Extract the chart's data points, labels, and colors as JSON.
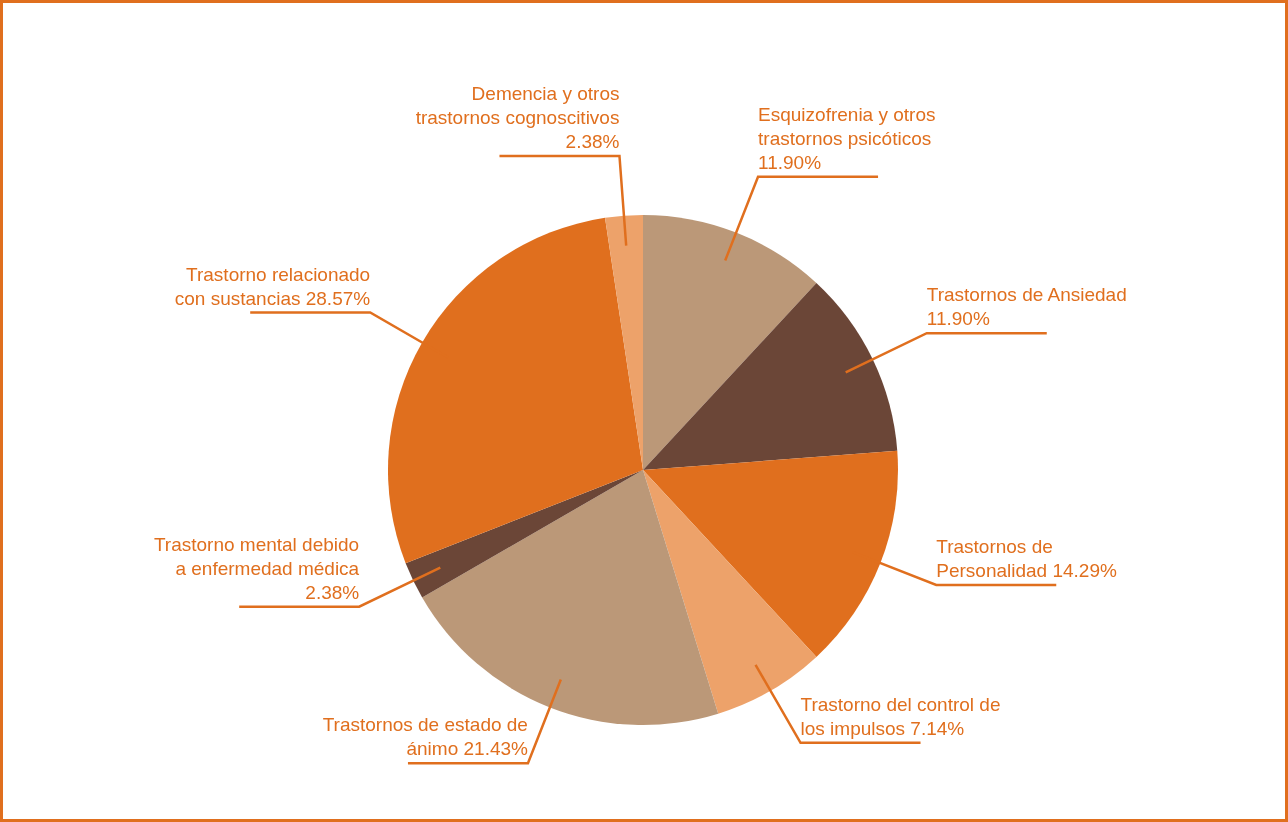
{
  "chart_data": {
    "type": "pie",
    "categories": [
      "Esquizofrenia y otros trastornos psicóticos",
      "Trastornos de Ansiedad",
      "Trastornos de Personalidad",
      "Trastorno del control de los impulsos",
      "Trastornos de estado de ánimo",
      "Trastorno mental debido a enfermedad médica",
      "Trastorno relacionado con sustancias",
      "Demencia y otros trastornos cognoscitivos"
    ],
    "values": [
      11.9,
      11.9,
      14.29,
      7.14,
      21.43,
      2.38,
      28.57,
      2.38
    ],
    "value_labels": [
      "11.90%",
      "11.90%",
      "14.29%",
      "7.14%",
      "21.43%",
      "2.38%",
      "28.57%",
      "2.38%"
    ],
    "colors": [
      "#bb9878",
      "#6b4637",
      "#e06f1e",
      "#eda26a",
      "#bb9878",
      "#6b4637",
      "#e06f1e",
      "#eda26a"
    ],
    "legend": false
  }
}
